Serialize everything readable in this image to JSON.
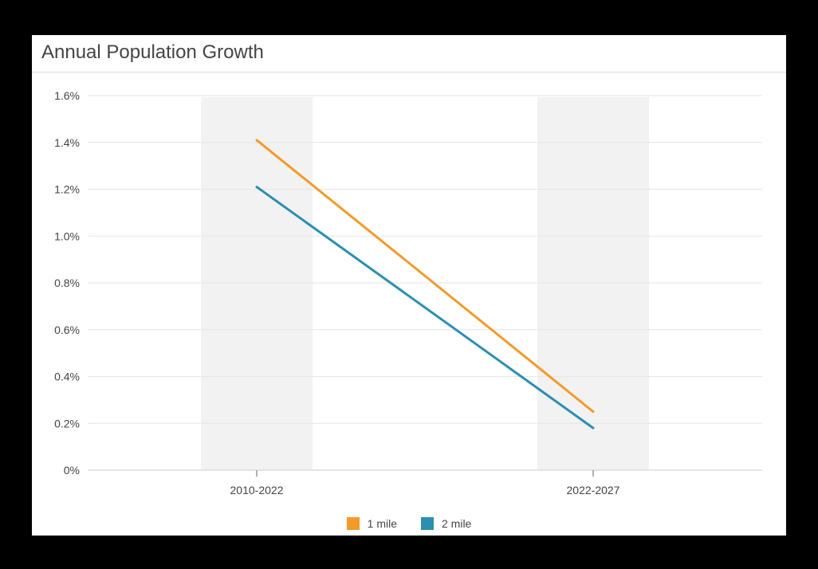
{
  "title": "Annual Population Growth",
  "colors": {
    "series1": "#F39A2B",
    "series2": "#2C8FB1",
    "band": "#F2F2F2",
    "grid": "#E6E6E6"
  },
  "chart_data": {
    "type": "line",
    "title": "Annual Population Growth",
    "xlabel": "",
    "ylabel": "",
    "categories": [
      "2010-2022",
      "2022-2027"
    ],
    "ylim": [
      0,
      1.6
    ],
    "yticks": [
      {
        "value": 0,
        "label": "0%"
      },
      {
        "value": 0.2,
        "label": "0.2%"
      },
      {
        "value": 0.4,
        "label": "0.4%"
      },
      {
        "value": 0.6,
        "label": "0.6%"
      },
      {
        "value": 0.8,
        "label": "0.8%"
      },
      {
        "value": 1.0,
        "label": "1.0%"
      },
      {
        "value": 1.2,
        "label": "1.2%"
      },
      {
        "value": 1.4,
        "label": "1.4%"
      },
      {
        "value": 1.6,
        "label": "1.6%"
      }
    ],
    "grid": true,
    "legend": "bottom-center",
    "series": [
      {
        "name": "1 mile",
        "values": [
          1.41,
          0.25
        ]
      },
      {
        "name": "2 mile",
        "values": [
          1.21,
          0.18
        ]
      }
    ]
  }
}
